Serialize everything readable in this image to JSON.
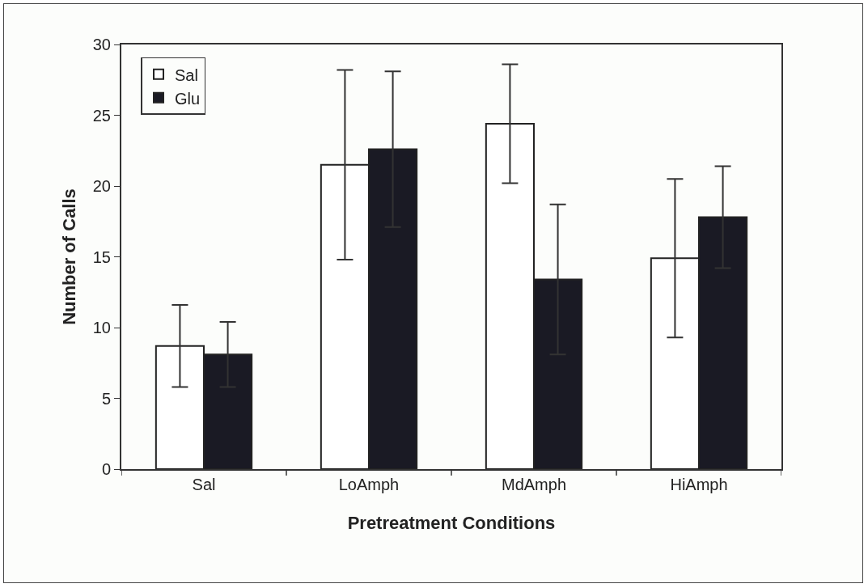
{
  "chart_data": {
    "type": "bar",
    "xlabel": "Pretreatment Conditions",
    "ylabel": "Number of Calls",
    "categories": [
      "Sal",
      "LoAmph",
      "MdAmph",
      "HiAmph"
    ],
    "series": [
      {
        "name": "Sal",
        "color": "#ffffff",
        "values": [
          8.7,
          21.5,
          24.4,
          14.9
        ],
        "errors": [
          2.9,
          6.7,
          4.2,
          5.6
        ]
      },
      {
        "name": "Glu",
        "color": "#1a1a24",
        "values": [
          8.1,
          22.6,
          13.4,
          17.8
        ],
        "errors": [
          2.3,
          5.5,
          5.3,
          3.6
        ]
      }
    ],
    "ylim": [
      0,
      30
    ],
    "yticks": [
      0,
      5,
      10,
      15,
      20,
      25,
      30
    ],
    "grid": false,
    "legend": "top left"
  }
}
